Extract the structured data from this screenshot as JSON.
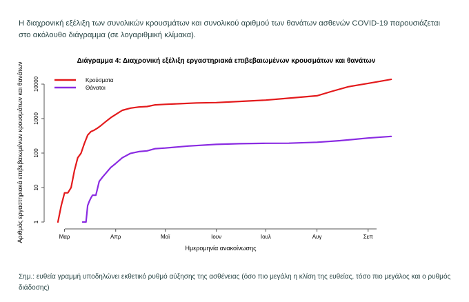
{
  "intro_text": "Η διαχρονική εξέλιξη των συνολικών κρουσμάτων και συνολικού αριθμού των θανάτων ασθενών COVID-19 παρουσιάζεται στο ακόλουθο διάγραμμα (σε λογαριθμική κλίμακα).",
  "note_text": "Σημ.: ευθεία γραμμή υποδηλώνει εκθετικό ρυθμό αύξησης της ασθένειας (όσο πιο μεγάλη η κλίση της ευθείας, τόσο πιο μεγάλος και ο ρυθμός διάδοσης)",
  "colors": {
    "cases": "#e31a1c",
    "deaths": "#8a2be2",
    "axis": "#555555"
  },
  "chart_data": {
    "type": "line",
    "title": "Διάγραμμα 4: Διαχρονική εξέλιξη εργαστηριακά επιβεβαιωμένων κρουσμάτων και θανάτων",
    "xlabel": "Ημερομηνία ανακοίνωσης",
    "ylabel": "Αριθμός εργαστηριακά επιβεβαιωμένων κρουσμάτων και θανάτων",
    "yscale": "log",
    "ylim": [
      1,
      10000
    ],
    "yticks": [
      1,
      10,
      100,
      1000,
      10000
    ],
    "ytick_labels": [
      "1",
      "10",
      "100",
      "1000",
      "10000"
    ],
    "xlim": [
      "2020-02-26",
      "2020-09-17"
    ],
    "xticks": [
      "2020-03-01",
      "2020-04-01",
      "2020-05-01",
      "2020-06-01",
      "2020-07-01",
      "2020-08-01",
      "2020-09-01"
    ],
    "xtick_labels": [
      "Μαρ",
      "Απρ",
      "Μαϊ",
      "Ιουν",
      "Ιουλ",
      "Αυγ",
      "Σεπ"
    ],
    "legend_position": "top-left",
    "grid": false,
    "series": [
      {
        "name": "Κρούσματα",
        "x": [
          "2020-02-26",
          "2020-02-28",
          "2020-03-01",
          "2020-03-03",
          "2020-03-05",
          "2020-03-07",
          "2020-03-09",
          "2020-03-11",
          "2020-03-13",
          "2020-03-15",
          "2020-03-17",
          "2020-03-19",
          "2020-03-21",
          "2020-03-23",
          "2020-03-26",
          "2020-03-29",
          "2020-04-01",
          "2020-04-05",
          "2020-04-10",
          "2020-04-15",
          "2020-04-20",
          "2020-04-25",
          "2020-05-01",
          "2020-05-10",
          "2020-05-20",
          "2020-06-01",
          "2020-06-15",
          "2020-07-01",
          "2020-07-15",
          "2020-08-01",
          "2020-08-10",
          "2020-08-20",
          "2020-09-01",
          "2020-09-10",
          "2020-09-15"
        ],
        "values": [
          1,
          3,
          7,
          7,
          10,
          31,
          73,
          99,
          190,
          331,
          418,
          464,
          530,
          624,
          821,
          1061,
          1314,
          1735,
          2011,
          2170,
          2235,
          2506,
          2591,
          2710,
          2840,
          2917,
          3148,
          3432,
          3910,
          4587,
          6177,
          8381,
          10524,
          12452,
          13730
        ]
      },
      {
        "name": "Θάνατοι",
        "x": [
          "2020-03-12",
          "2020-03-14",
          "2020-03-15",
          "2020-03-16",
          "2020-03-17",
          "2020-03-18",
          "2020-03-20",
          "2020-03-22",
          "2020-03-24",
          "2020-03-26",
          "2020-03-29",
          "2020-04-01",
          "2020-04-05",
          "2020-04-10",
          "2020-04-15",
          "2020-04-20",
          "2020-04-25",
          "2020-05-01",
          "2020-05-15",
          "2020-06-01",
          "2020-06-15",
          "2020-07-01",
          "2020-07-15",
          "2020-08-01",
          "2020-08-15",
          "2020-09-01",
          "2020-09-15"
        ],
        "values": [
          1,
          1,
          3,
          4,
          5,
          6,
          6,
          15,
          20,
          26,
          38,
          50,
          73,
          98,
          110,
          116,
          134,
          140,
          160,
          179,
          187,
          192,
          193,
          206,
          229,
          273,
          305
        ]
      }
    ]
  }
}
